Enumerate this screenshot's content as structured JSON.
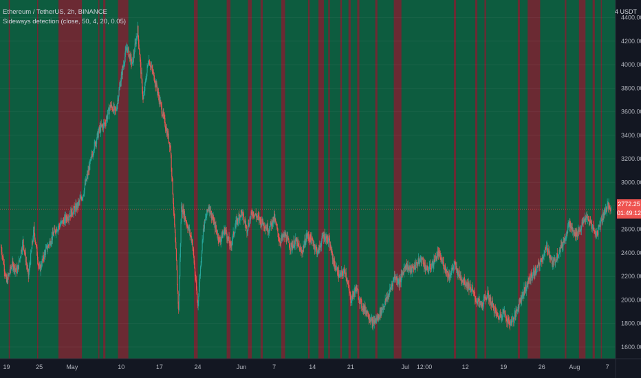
{
  "header": {
    "symbol_line": "Ethereum / TetherUS, 2h, BINANCE",
    "indicator_line": "Sideways detection (close, 50, 4, 20, 0.05)"
  },
  "price_axis": {
    "unit": "4 USDT",
    "last_price": "2772.25",
    "countdown": "01:49:12"
  },
  "colors": {
    "background": "#131722",
    "trend_band": "#0d5c3f",
    "sideways_band": "#6b2a33",
    "candle_up": "#26a69a",
    "candle_down": "#ef5350",
    "price_tag": "#ef5350",
    "axis_text": "#b2b5be"
  },
  "chart_data": {
    "type": "line",
    "title": "Ethereum / TetherUS, 2h, BINANCE",
    "xlabel": "",
    "ylabel": "",
    "ylim": [
      1500,
      4550
    ],
    "y_ticks": [
      1600,
      1800,
      2000,
      2200,
      2400,
      2600,
      2800,
      3000,
      3200,
      3400,
      3600,
      3800,
      4000,
      4200,
      4400
    ],
    "x_tick_labels": [
      {
        "label": "19",
        "day": 0
      },
      {
        "label": "25",
        "day": 6
      },
      {
        "label": "May",
        "day": 12
      },
      {
        "label": "10",
        "day": 21
      },
      {
        "label": "17",
        "day": 28
      },
      {
        "label": "24",
        "day": 35
      },
      {
        "label": "Jun",
        "day": 43
      },
      {
        "label": "7",
        "day": 49
      },
      {
        "label": "14",
        "day": 56
      },
      {
        "label": "21",
        "day": 63
      },
      {
        "label": "Jul",
        "day": 73
      },
      {
        "label": "12:00",
        "day": 76.5
      },
      {
        "label": "12",
        "day": 84
      },
      {
        "label": "19",
        "day": 91
      },
      {
        "label": "26",
        "day": 98
      },
      {
        "label": "Aug",
        "day": 104
      },
      {
        "label": "7",
        "day": 110
      }
    ],
    "x_range_days": [
      -1.2,
      111.5
    ],
    "series": [
      {
        "values_day": [
          -1,
          0,
          1,
          2,
          3,
          4,
          5,
          6,
          7,
          8,
          9,
          10,
          11,
          12,
          13,
          14,
          15,
          16,
          17,
          18,
          19,
          20,
          21,
          22,
          23,
          24,
          25,
          26,
          27,
          28,
          29,
          30,
          31,
          31.5,
          32,
          33,
          34,
          35,
          36,
          37,
          38,
          39,
          40,
          41,
          42,
          43,
          44,
          45,
          46,
          47,
          48,
          49,
          50,
          51,
          52,
          53,
          54,
          55,
          56,
          57,
          58,
          59,
          60,
          61,
          62,
          63,
          64,
          65,
          66,
          67,
          68,
          69,
          70,
          71,
          72,
          73,
          74,
          75,
          76,
          77,
          78,
          79,
          80,
          81,
          82,
          83,
          84,
          85,
          86,
          87,
          88,
          89,
          90,
          91,
          92,
          93,
          94,
          95,
          96,
          97,
          98,
          99,
          100,
          101,
          102,
          103,
          104,
          105,
          106,
          107,
          108,
          109,
          110,
          110.7
        ],
        "values": [
          2450,
          2150,
          2300,
          2250,
          2500,
          2200,
          2600,
          2250,
          2400,
          2500,
          2600,
          2650,
          2700,
          2750,
          2800,
          2900,
          3100,
          3300,
          3450,
          3500,
          3650,
          3600,
          3900,
          4150,
          4000,
          4300,
          3700,
          4050,
          3900,
          3700,
          3500,
          3300,
          2400,
          1900,
          2800,
          2650,
          2500,
          1950,
          2600,
          2800,
          2650,
          2500,
          2600,
          2450,
          2650,
          2750,
          2600,
          2750,
          2700,
          2650,
          2600,
          2700,
          2500,
          2550,
          2450,
          2500,
          2400,
          2550,
          2500,
          2400,
          2550,
          2500,
          2300,
          2200,
          2250,
          2000,
          2100,
          1950,
          1900,
          1800,
          1850,
          1950,
          2050,
          2200,
          2150,
          2300,
          2250,
          2300,
          2350,
          2250,
          2300,
          2400,
          2300,
          2200,
          2300,
          2200,
          2150,
          2100,
          2000,
          1950,
          2050,
          1950,
          1850,
          1900,
          1800,
          1850,
          2000,
          2100,
          2200,
          2250,
          2350,
          2450,
          2300,
          2400,
          2500,
          2650,
          2550,
          2600,
          2700,
          2650,
          2550,
          2700,
          2800,
          2770
        ]
      }
    ],
    "sideways_ranges_days": [
      [
        0.4,
        0.6
      ],
      [
        5.6,
        5.8
      ],
      [
        9.5,
        13.8
      ],
      [
        16.8,
        17.0
      ],
      [
        17.7,
        18.1
      ],
      [
        20.4,
        22.3
      ],
      [
        34.3,
        35.0
      ],
      [
        40.3,
        41.0
      ],
      [
        44.2,
        44.9
      ],
      [
        46.5,
        46.9
      ],
      [
        50.3,
        51.0
      ],
      [
        55.2,
        55.5
      ],
      [
        57.1,
        58.1
      ],
      [
        58.9,
        59.2
      ],
      [
        61.1,
        61.4
      ],
      [
        62.6,
        63.0
      ],
      [
        64.2,
        64.6
      ],
      [
        67.5,
        67.9
      ],
      [
        70.9,
        72.3
      ],
      [
        81.9,
        82.3
      ],
      [
        85.8,
        86.2
      ],
      [
        87.5,
        87.8
      ],
      [
        93.6,
        94.0
      ],
      [
        95.4,
        97.7
      ],
      [
        102.2,
        102.5
      ],
      [
        104.8,
        106.0
      ],
      [
        107.3,
        107.7
      ],
      [
        108.8,
        109.0
      ]
    ]
  }
}
